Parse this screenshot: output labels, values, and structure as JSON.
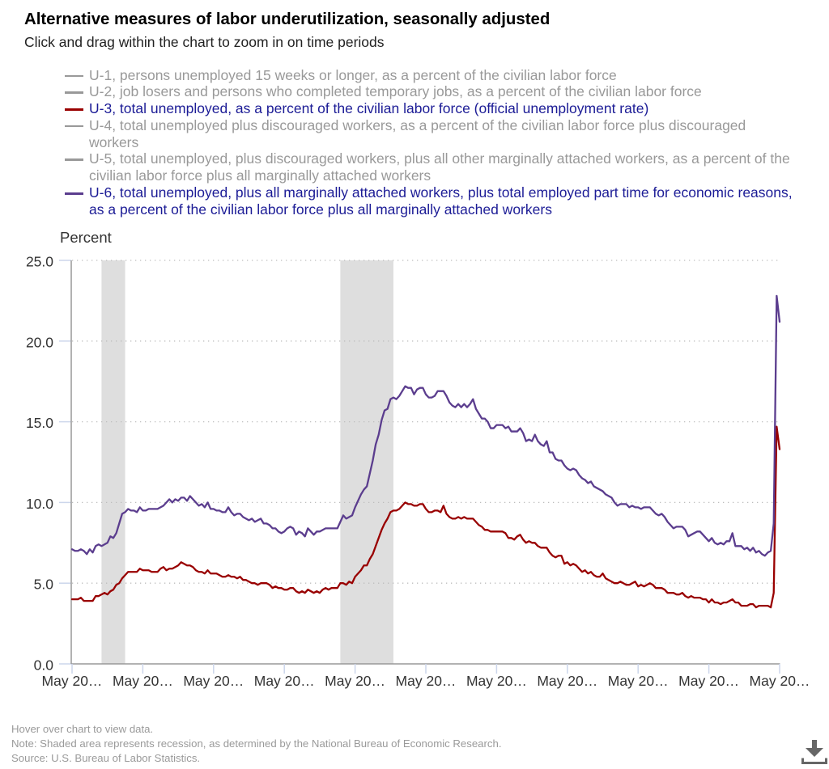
{
  "chart_data": {
    "type": "line",
    "title": "Alternative measures of labor underutilization, seasonally adjusted",
    "subtitle": "Click and drag within the chart to zoom in on time periods",
    "xlabel": "",
    "ylabel": "Percent",
    "ylim": [
      0,
      25
    ],
    "y_ticks": [
      0,
      5,
      10,
      15,
      20,
      25
    ],
    "y_tick_labels": [
      "0.0",
      "5.0",
      "10.0",
      "15.0",
      "20.0",
      "25.0"
    ],
    "grid": true,
    "grid_style": "dotted horizontal",
    "x_start": "2000-05",
    "x_end": "2020-05",
    "frequency": "monthly",
    "x_ticks": [
      "2000-05",
      "2002-05",
      "2004-05",
      "2006-05",
      "2008-05",
      "2010-05",
      "2012-05",
      "2014-05",
      "2016-05",
      "2018-05",
      "2020-05"
    ],
    "x_tick_labels": [
      "May 20…",
      "May 20…",
      "May 20…",
      "May 20…",
      "May 20…",
      "May 20…",
      "May 20…",
      "May 20…",
      "May 20…",
      "May 20…",
      "May 20…"
    ],
    "recessions": [
      {
        "start": "2001-03",
        "end": "2001-11"
      },
      {
        "start": "2007-12",
        "end": "2009-06"
      }
    ],
    "recession_color": "#dedede",
    "legend_position": "top",
    "legend_entries": [
      {
        "label": "U-1, persons unemployed 15 weeks or longer, as a percent of the civilian labor force",
        "active": false,
        "symbol_color": "#999999",
        "text_color": "#999999"
      },
      {
        "label": "U-2, job losers and persons who completed temporary jobs, as a percent of the civilian labor force",
        "active": false,
        "symbol_color": "#999999",
        "text_color": "#999999"
      },
      {
        "label": "U-3, total unemployed, as a percent of the civilian labor force (official unemployment rate)",
        "active": true,
        "symbol_color": "#990000",
        "text_color": "#1c1c96"
      },
      {
        "label": "U-4, total unemployed plus discouraged workers, as a percent of the civilian labor force plus discouraged workers",
        "active": false,
        "symbol_color": "#999999",
        "text_color": "#999999"
      },
      {
        "label": "U-5, total unemployed, plus discouraged workers, plus all other marginally attached workers, as a percent of the civilian labor force plus all marginally attached workers",
        "active": false,
        "symbol_color": "#999999",
        "text_color": "#999999"
      },
      {
        "label": "U-6, total unemployed, plus all marginally attached workers, plus total employed part time for economic reasons, as a percent of the civilian labor force plus all marginally attached workers",
        "active": true,
        "symbol_color": "#5b3d8e",
        "text_color": "#1c1c96"
      }
    ],
    "series": [
      {
        "name": "U-3",
        "color": "#990000",
        "values": [
          4.0,
          4.0,
          4.0,
          4.1,
          3.9,
          3.9,
          3.9,
          3.9,
          4.2,
          4.2,
          4.3,
          4.4,
          4.3,
          4.5,
          4.6,
          4.9,
          5.0,
          5.3,
          5.5,
          5.7,
          5.7,
          5.7,
          5.7,
          5.9,
          5.8,
          5.8,
          5.8,
          5.7,
          5.7,
          5.7,
          5.9,
          6.0,
          5.8,
          5.9,
          5.9,
          6.0,
          6.1,
          6.3,
          6.2,
          6.1,
          6.1,
          6.0,
          5.8,
          5.7,
          5.7,
          5.6,
          5.8,
          5.6,
          5.6,
          5.6,
          5.5,
          5.4,
          5.4,
          5.5,
          5.4,
          5.4,
          5.3,
          5.4,
          5.2,
          5.2,
          5.1,
          5.0,
          5.0,
          4.9,
          5.0,
          5.0,
          5.0,
          4.9,
          4.7,
          4.8,
          4.7,
          4.7,
          4.6,
          4.6,
          4.7,
          4.7,
          4.5,
          4.4,
          4.5,
          4.4,
          4.6,
          4.5,
          4.4,
          4.5,
          4.4,
          4.6,
          4.7,
          4.6,
          4.7,
          4.7,
          4.7,
          5.0,
          5.0,
          4.9,
          5.1,
          5.0,
          5.4,
          5.6,
          5.8,
          6.1,
          6.1,
          6.5,
          6.8,
          7.3,
          7.8,
          8.3,
          8.7,
          9.0,
          9.4,
          9.5,
          9.5,
          9.6,
          9.8,
          10.0,
          9.9,
          9.9,
          9.8,
          9.8,
          9.9,
          9.9,
          9.6,
          9.4,
          9.4,
          9.5,
          9.5,
          9.4,
          9.8,
          9.3,
          9.1,
          9.0,
          9.0,
          9.1,
          9.0,
          9.1,
          9.0,
          9.0,
          9.0,
          8.8,
          8.6,
          8.5,
          8.3,
          8.3,
          8.2,
          8.2,
          8.2,
          8.2,
          8.2,
          8.1,
          7.8,
          7.8,
          7.7,
          7.9,
          8.0,
          7.7,
          7.5,
          7.6,
          7.5,
          7.5,
          7.3,
          7.2,
          7.2,
          7.2,
          6.9,
          6.7,
          6.6,
          6.7,
          6.7,
          6.2,
          6.3,
          6.1,
          6.2,
          6.1,
          5.9,
          5.7,
          5.8,
          5.6,
          5.7,
          5.5,
          5.4,
          5.4,
          5.6,
          5.3,
          5.2,
          5.1,
          5.0,
          5.0,
          5.1,
          5.0,
          4.9,
          4.9,
          5.0,
          5.1,
          4.8,
          4.9,
          4.8,
          4.9,
          5.0,
          4.9,
          4.7,
          4.7,
          4.7,
          4.6,
          4.4,
          4.4,
          4.4,
          4.3,
          4.3,
          4.4,
          4.2,
          4.1,
          4.2,
          4.1,
          4.1,
          4.1,
          4.0,
          4.0,
          3.8,
          4.0,
          3.8,
          3.8,
          3.7,
          3.8,
          3.8,
          3.9,
          4.0,
          3.8,
          3.8,
          3.6,
          3.6,
          3.6,
          3.7,
          3.7,
          3.5,
          3.6,
          3.6,
          3.6,
          3.6,
          3.5,
          4.4,
          14.7,
          13.3
        ]
      },
      {
        "name": "U-6",
        "color": "#5b3d8e",
        "values": [
          7.1,
          7.0,
          7.0,
          7.1,
          7.0,
          6.8,
          7.1,
          6.9,
          7.3,
          7.4,
          7.3,
          7.4,
          7.5,
          7.9,
          7.8,
          8.1,
          8.7,
          9.3,
          9.4,
          9.6,
          9.5,
          9.5,
          9.4,
          9.7,
          9.5,
          9.5,
          9.6,
          9.6,
          9.6,
          9.6,
          9.7,
          9.8,
          10.0,
          10.2,
          10.0,
          10.2,
          10.1,
          10.3,
          10.3,
          10.1,
          10.4,
          10.2,
          10.0,
          9.8,
          9.9,
          9.7,
          10.0,
          9.6,
          9.6,
          9.5,
          9.5,
          9.4,
          9.4,
          9.7,
          9.4,
          9.2,
          9.3,
          9.3,
          9.1,
          9.0,
          8.9,
          9.0,
          8.8,
          8.9,
          9.0,
          8.7,
          8.7,
          8.6,
          8.4,
          8.4,
          8.2,
          8.1,
          8.2,
          8.4,
          8.5,
          8.4,
          8.0,
          8.2,
          8.1,
          7.9,
          8.4,
          8.2,
          8.0,
          8.2,
          8.2,
          8.3,
          8.4,
          8.4,
          8.4,
          8.4,
          8.4,
          8.8,
          9.2,
          9.0,
          9.1,
          9.2,
          9.7,
          10.1,
          10.5,
          10.8,
          11.0,
          11.8,
          12.6,
          13.6,
          14.2,
          15.1,
          15.7,
          15.8,
          16.4,
          16.5,
          16.4,
          16.6,
          16.9,
          17.2,
          17.1,
          17.1,
          16.7,
          17.0,
          17.1,
          17.1,
          16.7,
          16.5,
          16.5,
          16.6,
          16.9,
          16.9,
          16.9,
          16.6,
          16.2,
          16.0,
          15.9,
          16.1,
          15.9,
          16.1,
          15.9,
          16.1,
          16.4,
          15.8,
          15.5,
          15.2,
          15.2,
          15.0,
          14.6,
          14.6,
          14.8,
          14.8,
          14.8,
          14.6,
          14.7,
          14.4,
          14.4,
          14.4,
          14.6,
          14.3,
          13.8,
          13.9,
          13.8,
          14.2,
          13.8,
          13.6,
          13.5,
          13.8,
          13.1,
          13.1,
          12.7,
          12.6,
          12.6,
          12.3,
          12.1,
          12.0,
          12.1,
          12.0,
          11.7,
          11.5,
          11.4,
          11.2,
          11.3,
          11.0,
          10.9,
          10.8,
          10.7,
          10.5,
          10.4,
          10.3,
          10.0,
          9.8,
          9.9,
          9.9,
          9.9,
          9.7,
          9.8,
          9.7,
          9.7,
          9.6,
          9.7,
          9.7,
          9.7,
          9.5,
          9.3,
          9.2,
          9.3,
          9.1,
          8.8,
          8.6,
          8.4,
          8.5,
          8.5,
          8.5,
          8.3,
          7.9,
          8.0,
          8.1,
          8.2,
          8.2,
          8.0,
          7.8,
          7.6,
          7.8,
          7.5,
          7.4,
          7.5,
          7.4,
          7.6,
          7.6,
          8.1,
          7.3,
          7.3,
          7.3,
          7.1,
          7.2,
          7.0,
          7.2,
          6.9,
          7.0,
          6.8,
          6.7,
          6.9,
          7.0,
          8.7,
          22.8,
          21.2
        ]
      }
    ]
  },
  "footer": {
    "hover_hint": "Hover over chart to view data.",
    "note": "Note: Shaded area represents recession, as determined by the National Bureau of Economic Research.",
    "source": "Source: U.S. Bureau of Labor Statistics."
  },
  "toolbar": {
    "download_icon": "download-icon",
    "download_color": "#666666"
  }
}
